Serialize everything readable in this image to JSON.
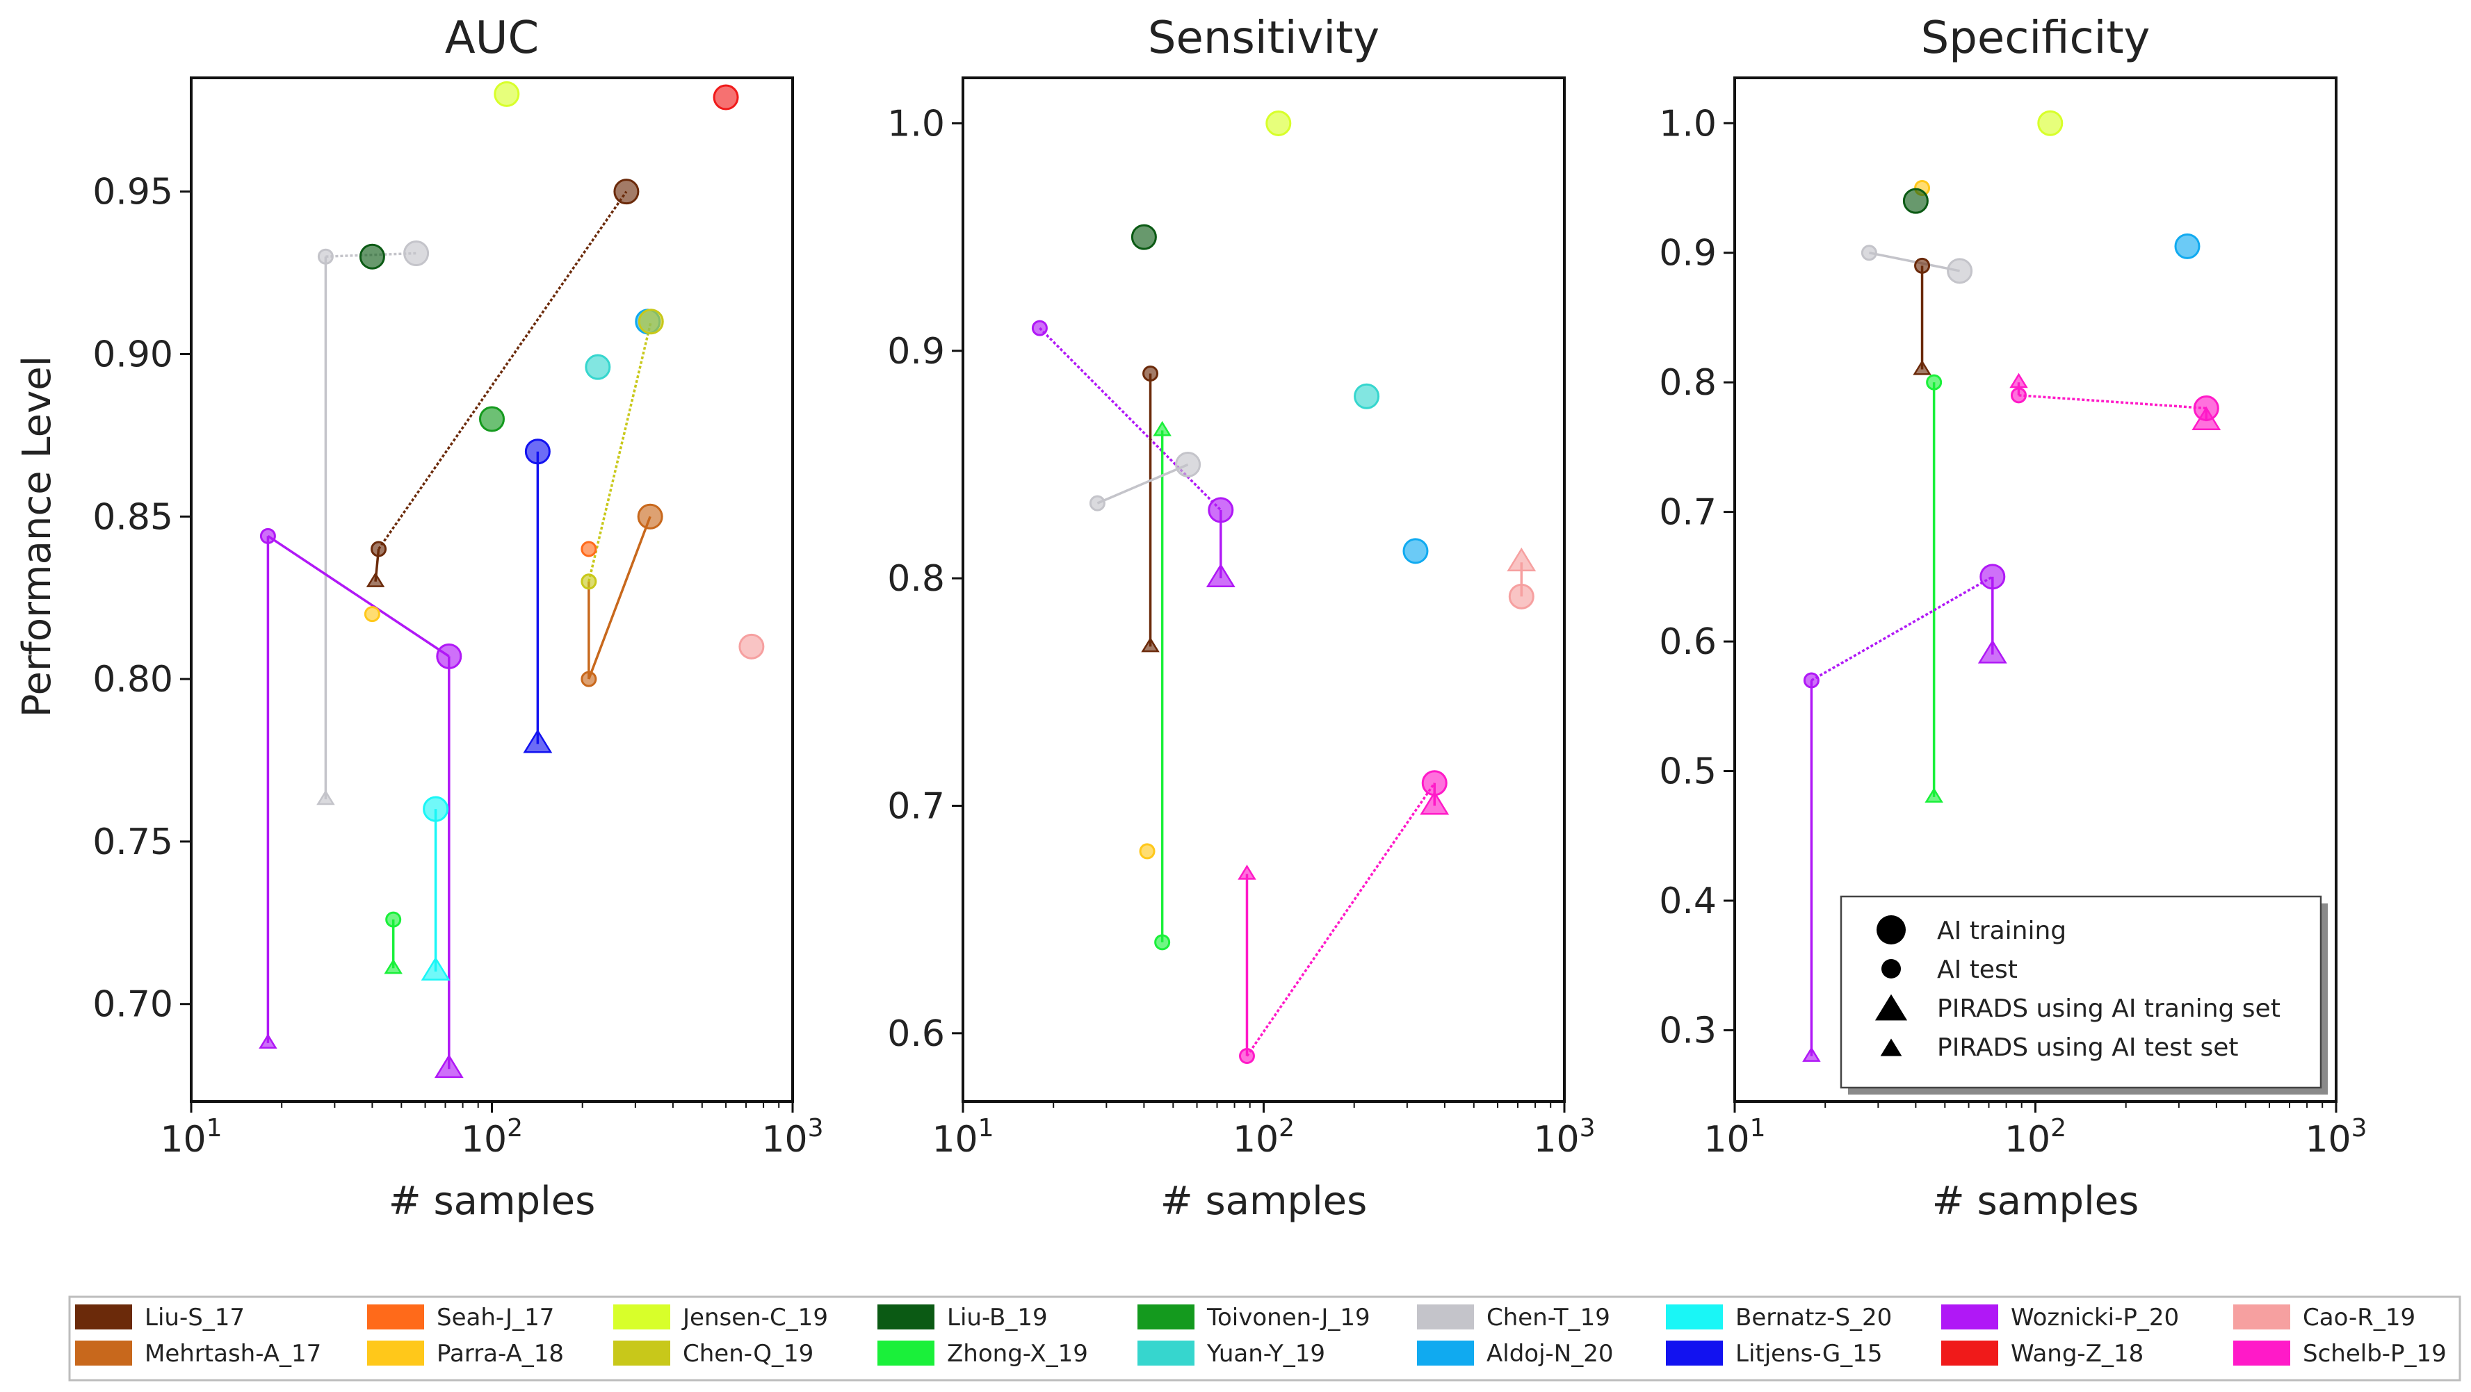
{
  "chart_data": {
    "type": "scatter",
    "figure": {
      "shared_ylabel": "Performance Level",
      "x_scale": "log",
      "legend_marker_title": null
    },
    "panels": [
      {
        "title": "AUC",
        "xlabel": "# samples",
        "xlim": [
          10,
          1000
        ],
        "ylim": [
          0.67,
          0.985
        ],
        "yticks": [
          0.7,
          0.75,
          0.8,
          0.85,
          0.9,
          0.95
        ],
        "ytick_labels": [
          "0.70",
          "0.75",
          "0.80",
          "0.85",
          "0.90",
          "0.95"
        ],
        "points": [
          {
            "study": "Jensen-C_19",
            "kind": "ai_train",
            "n": 112,
            "v": 0.98
          },
          {
            "study": "Wang-Z_18",
            "kind": "ai_train",
            "n": 600,
            "v": 0.979
          },
          {
            "study": "Liu-S_17",
            "kind": "ai_train",
            "n": 280,
            "v": 0.95
          },
          {
            "study": "Liu-S_17",
            "kind": "ai_test",
            "n": 42,
            "v": 0.84
          },
          {
            "study": "Liu-S_17",
            "kind": "pirads_test",
            "n": 41,
            "v": 0.83
          },
          {
            "study": "Liu-B_19",
            "kind": "ai_train",
            "n": 40,
            "v": 0.93
          },
          {
            "study": "Chen-T_19",
            "kind": "ai_train",
            "n": 56,
            "v": 0.931
          },
          {
            "study": "Chen-T_19",
            "kind": "ai_test",
            "n": 28,
            "v": 0.93
          },
          {
            "study": "Chen-T_19",
            "kind": "pirads_test",
            "n": 28,
            "v": 0.763
          },
          {
            "study": "Aldoj-N_20",
            "kind": "ai_train",
            "n": 330,
            "v": 0.91
          },
          {
            "study": "Chen-Q_19",
            "kind": "ai_train",
            "n": 338,
            "v": 0.91
          },
          {
            "study": "Chen-Q_19",
            "kind": "ai_test",
            "n": 210,
            "v": 0.83
          },
          {
            "study": "Yuan-Y_19",
            "kind": "ai_train",
            "n": 225,
            "v": 0.896
          },
          {
            "study": "Toivonen-J_19",
            "kind": "ai_train",
            "n": 100,
            "v": 0.88
          },
          {
            "study": "Litjens-G_15",
            "kind": "ai_train",
            "n": 142,
            "v": 0.87
          },
          {
            "study": "Litjens-G_15",
            "kind": "pirads_train",
            "n": 142,
            "v": 0.78
          },
          {
            "study": "Mehrtash-A_17",
            "kind": "ai_train",
            "n": 336,
            "v": 0.85
          },
          {
            "study": "Mehrtash-A_17",
            "kind": "ai_test",
            "n": 210,
            "v": 0.8
          },
          {
            "study": "Seah-J_17",
            "kind": "ai_test",
            "n": 210,
            "v": 0.84
          },
          {
            "study": "Parra-A_18",
            "kind": "ai_test",
            "n": 40,
            "v": 0.82
          },
          {
            "study": "Woznicki-P_20",
            "kind": "ai_test",
            "n": 18,
            "v": 0.844
          },
          {
            "study": "Woznicki-P_20",
            "kind": "pirads_test",
            "n": 18,
            "v": 0.688
          },
          {
            "study": "Woznicki-P_20",
            "kind": "ai_train",
            "n": 72,
            "v": 0.807
          },
          {
            "study": "Woznicki-P_20",
            "kind": "pirads_train",
            "n": 72,
            "v": 0.68
          },
          {
            "study": "Cao-R_19",
            "kind": "ai_train",
            "n": 730,
            "v": 0.81
          },
          {
            "study": "Bernatz-S_20",
            "kind": "ai_train",
            "n": 65,
            "v": 0.76
          },
          {
            "study": "Bernatz-S_20",
            "kind": "pirads_train",
            "n": 65,
            "v": 0.71
          },
          {
            "study": "Zhong-X_19",
            "kind": "ai_test",
            "n": 47,
            "v": 0.726
          },
          {
            "study": "Zhong-X_19",
            "kind": "pirads_test",
            "n": 47,
            "v": 0.711
          }
        ],
        "links": [
          {
            "study": "Liu-S_17",
            "from": [
              42,
              0.84
            ],
            "to": [
              280,
              0.95
            ],
            "style": "dotted"
          },
          {
            "study": "Liu-S_17",
            "from": [
              42,
              0.84
            ],
            "to": [
              41,
              0.83
            ],
            "style": "solid"
          },
          {
            "study": "Chen-T_19",
            "from": [
              28,
              0.93
            ],
            "to": [
              56,
              0.931
            ],
            "style": "dotted"
          },
          {
            "study": "Chen-T_19",
            "from": [
              28,
              0.93
            ],
            "to": [
              28,
              0.763
            ],
            "style": "solid"
          },
          {
            "study": "Chen-Q_19",
            "from": [
              210,
              0.83
            ],
            "to": [
              338,
              0.91
            ],
            "style": "dotted"
          },
          {
            "study": "Litjens-G_15",
            "from": [
              142,
              0.87
            ],
            "to": [
              142,
              0.78
            ],
            "style": "solid"
          },
          {
            "study": "Mehrtash-A_17",
            "from": [
              210,
              0.8
            ],
            "to": [
              336,
              0.85
            ],
            "style": "solid"
          },
          {
            "study": "Mehrtash-A_17",
            "from": [
              210,
              0.8
            ],
            "to": [
              210,
              0.83
            ],
            "style": "solid"
          },
          {
            "study": "Woznicki-P_20",
            "from": [
              18,
              0.844
            ],
            "to": [
              72,
              0.807
            ],
            "style": "solid"
          },
          {
            "study": "Woznicki-P_20",
            "from": [
              18,
              0.844
            ],
            "to": [
              18,
              0.688
            ],
            "style": "solid"
          },
          {
            "study": "Woznicki-P_20",
            "from": [
              72,
              0.807
            ],
            "to": [
              72,
              0.68
            ],
            "style": "solid"
          },
          {
            "study": "Bernatz-S_20",
            "from": [
              65,
              0.76
            ],
            "to": [
              65,
              0.71
            ],
            "style": "solid"
          },
          {
            "study": "Zhong-X_19",
            "from": [
              47,
              0.726
            ],
            "to": [
              47,
              0.711
            ],
            "style": "solid"
          }
        ]
      },
      {
        "title": "Sensitivity",
        "xlabel": "# samples",
        "xlim": [
          10,
          1000
        ],
        "ylim": [
          0.57,
          1.02
        ],
        "yticks": [
          0.6,
          0.7,
          0.8,
          0.9,
          1.0
        ],
        "ytick_labels": [
          "0.6",
          "0.7",
          "0.8",
          "0.9",
          "1.0"
        ],
        "points": [
          {
            "study": "Jensen-C_19",
            "kind": "ai_train",
            "n": 112,
            "v": 1.0
          },
          {
            "study": "Liu-B_19",
            "kind": "ai_train",
            "n": 40,
            "v": 0.95
          },
          {
            "study": "Woznicki-P_20",
            "kind": "ai_test",
            "n": 18,
            "v": 0.91
          },
          {
            "study": "Woznicki-P_20",
            "kind": "ai_train",
            "n": 72,
            "v": 0.83
          },
          {
            "study": "Woznicki-P_20",
            "kind": "pirads_train",
            "n": 72,
            "v": 0.8
          },
          {
            "study": "Liu-S_17",
            "kind": "ai_test",
            "n": 42,
            "v": 0.89
          },
          {
            "study": "Liu-S_17",
            "kind": "pirads_test",
            "n": 42,
            "v": 0.77
          },
          {
            "study": "Yuan-Y_19",
            "kind": "ai_train",
            "n": 220,
            "v": 0.88
          },
          {
            "study": "Zhong-X_19",
            "kind": "pirads_test",
            "n": 46,
            "v": 0.865
          },
          {
            "study": "Zhong-X_19",
            "kind": "ai_test",
            "n": 46,
            "v": 0.64
          },
          {
            "study": "Chen-T_19",
            "kind": "ai_train",
            "n": 56,
            "v": 0.85
          },
          {
            "study": "Chen-T_19",
            "kind": "ai_test",
            "n": 28,
            "v": 0.833
          },
          {
            "study": "Aldoj-N_20",
            "kind": "ai_train",
            "n": 320,
            "v": 0.812
          },
          {
            "study": "Cao-R_19",
            "kind": "pirads_train",
            "n": 720,
            "v": 0.807
          },
          {
            "study": "Cao-R_19",
            "kind": "ai_train",
            "n": 720,
            "v": 0.792
          },
          {
            "study": "Schelb-P_19",
            "kind": "ai_train",
            "n": 370,
            "v": 0.71
          },
          {
            "study": "Schelb-P_19",
            "kind": "pirads_train",
            "n": 370,
            "v": 0.7
          },
          {
            "study": "Schelb-P_19",
            "kind": "ai_test",
            "n": 88,
            "v": 0.59
          },
          {
            "study": "Schelb-P_19",
            "kind": "pirads_test",
            "n": 88,
            "v": 0.67
          },
          {
            "study": "Parra-A_18",
            "kind": "ai_test",
            "n": 41,
            "v": 0.68
          }
        ],
        "links": [
          {
            "study": "Woznicki-P_20",
            "from": [
              18,
              0.91
            ],
            "to": [
              72,
              0.83
            ],
            "style": "dotted"
          },
          {
            "study": "Woznicki-P_20",
            "from": [
              72,
              0.83
            ],
            "to": [
              72,
              0.8
            ],
            "style": "solid"
          },
          {
            "study": "Liu-S_17",
            "from": [
              42,
              0.89
            ],
            "to": [
              42,
              0.77
            ],
            "style": "solid"
          },
          {
            "study": "Zhong-X_19",
            "from": [
              46,
              0.865
            ],
            "to": [
              46,
              0.64
            ],
            "style": "solid"
          },
          {
            "study": "Chen-T_19",
            "from": [
              28,
              0.833
            ],
            "to": [
              56,
              0.85
            ],
            "style": "solid"
          },
          {
            "study": "Cao-R_19",
            "from": [
              720,
              0.807
            ],
            "to": [
              720,
              0.792
            ],
            "style": "solid"
          },
          {
            "study": "Schelb-P_19",
            "from": [
              88,
              0.59
            ],
            "to": [
              370,
              0.71
            ],
            "style": "dotted"
          },
          {
            "study": "Schelb-P_19",
            "from": [
              88,
              0.59
            ],
            "to": [
              88,
              0.67
            ],
            "style": "solid"
          },
          {
            "study": "Schelb-P_19",
            "from": [
              370,
              0.71
            ],
            "to": [
              370,
              0.7
            ],
            "style": "solid"
          }
        ]
      },
      {
        "title": "Specificity",
        "xlabel": "# samples",
        "xlim": [
          10,
          1000
        ],
        "ylim": [
          0.245,
          1.035
        ],
        "yticks": [
          0.3,
          0.4,
          0.5,
          0.6,
          0.7,
          0.8,
          0.9,
          1.0
        ],
        "ytick_labels": [
          "0.3",
          "0.4",
          "0.5",
          "0.6",
          "0.7",
          "0.8",
          "0.9",
          "1.0"
        ],
        "points": [
          {
            "study": "Jensen-C_19",
            "kind": "ai_train",
            "n": 112,
            "v": 1.0
          },
          {
            "study": "Parra-A_18",
            "kind": "ai_test",
            "n": 42,
            "v": 0.95
          },
          {
            "study": "Liu-B_19",
            "kind": "ai_train",
            "n": 40,
            "v": 0.94
          },
          {
            "study": "Aldoj-N_20",
            "kind": "ai_train",
            "n": 320,
            "v": 0.905
          },
          {
            "study": "Chen-T_19",
            "kind": "ai_test",
            "n": 28,
            "v": 0.9
          },
          {
            "study": "Chen-T_19",
            "kind": "ai_train",
            "n": 56,
            "v": 0.886
          },
          {
            "study": "Liu-S_17",
            "kind": "ai_test",
            "n": 42,
            "v": 0.89
          },
          {
            "study": "Liu-S_17",
            "kind": "pirads_test",
            "n": 42,
            "v": 0.81
          },
          {
            "study": "Zhong-X_19",
            "kind": "ai_test",
            "n": 46,
            "v": 0.8
          },
          {
            "study": "Zhong-X_19",
            "kind": "pirads_test",
            "n": 46,
            "v": 0.48
          },
          {
            "study": "Schelb-P_19",
            "kind": "pirads_test",
            "n": 88,
            "v": 0.8
          },
          {
            "study": "Schelb-P_19",
            "kind": "ai_test",
            "n": 88,
            "v": 0.79
          },
          {
            "study": "Schelb-P_19",
            "kind": "ai_train",
            "n": 370,
            "v": 0.78
          },
          {
            "study": "Schelb-P_19",
            "kind": "pirads_train",
            "n": 370,
            "v": 0.77
          },
          {
            "study": "Woznicki-P_20",
            "kind": "ai_train",
            "n": 72,
            "v": 0.65
          },
          {
            "study": "Woznicki-P_20",
            "kind": "pirads_train",
            "n": 72,
            "v": 0.59
          },
          {
            "study": "Woznicki-P_20",
            "kind": "ai_test",
            "n": 18,
            "v": 0.57
          },
          {
            "study": "Woznicki-P_20",
            "kind": "pirads_test",
            "n": 18,
            "v": 0.28
          }
        ],
        "links": [
          {
            "study": "Chen-T_19",
            "from": [
              28,
              0.9
            ],
            "to": [
              56,
              0.886
            ],
            "style": "solid"
          },
          {
            "study": "Liu-S_17",
            "from": [
              42,
              0.89
            ],
            "to": [
              42,
              0.81
            ],
            "style": "solid"
          },
          {
            "study": "Zhong-X_19",
            "from": [
              46,
              0.8
            ],
            "to": [
              46,
              0.48
            ],
            "style": "solid"
          },
          {
            "study": "Schelb-P_19",
            "from": [
              88,
              0.79
            ],
            "to": [
              370,
              0.78
            ],
            "style": "dotted"
          },
          {
            "study": "Schelb-P_19",
            "from": [
              88,
              0.79
            ],
            "to": [
              88,
              0.8
            ],
            "style": "solid"
          },
          {
            "study": "Schelb-P_19",
            "from": [
              370,
              0.78
            ],
            "to": [
              370,
              0.77
            ],
            "style": "solid"
          },
          {
            "study": "Woznicki-P_20",
            "from": [
              18,
              0.57
            ],
            "to": [
              72,
              0.65
            ],
            "style": "dotted"
          },
          {
            "study": "Woznicki-P_20",
            "from": [
              18,
              0.57
            ],
            "to": [
              18,
              0.28
            ],
            "style": "solid"
          },
          {
            "study": "Woznicki-P_20",
            "from": [
              72,
              0.65
            ],
            "to": [
              72,
              0.59
            ],
            "style": "solid"
          }
        ]
      }
    ],
    "marker_legend": [
      {
        "kind": "ai_train",
        "label": "AI training"
      },
      {
        "kind": "ai_test",
        "label": "AI test"
      },
      {
        "kind": "pirads_train",
        "label": "PIRADS using AI traning set"
      },
      {
        "kind": "pirads_test",
        "label": "PIRADS using AI test set"
      }
    ],
    "studies": [
      {
        "name": "Liu-S_17",
        "color": "#6B2A0A"
      },
      {
        "name": "Mehrtash-A_17",
        "color": "#C8681C"
      },
      {
        "name": "Seah-J_17",
        "color": "#FF6A1A"
      },
      {
        "name": "Parra-A_18",
        "color": "#FFC81A"
      },
      {
        "name": "Jensen-C_19",
        "color": "#D8FF2A"
      },
      {
        "name": "Chen-Q_19",
        "color": "#C8C81A"
      },
      {
        "name": "Liu-B_19",
        "color": "#0B5A14"
      },
      {
        "name": "Zhong-X_19",
        "color": "#1AF03A"
      },
      {
        "name": "Toivonen-J_19",
        "color": "#149A1E"
      },
      {
        "name": "Yuan-Y_19",
        "color": "#36D6CE"
      },
      {
        "name": "Chen-T_19",
        "color": "#C4C4CA"
      },
      {
        "name": "Aldoj-N_20",
        "color": "#10AAF0"
      },
      {
        "name": "Bernatz-S_20",
        "color": "#1AF6F6"
      },
      {
        "name": "Litjens-G_15",
        "color": "#1212F0"
      },
      {
        "name": "Woznicki-P_20",
        "color": "#B018F6"
      },
      {
        "name": "Wang-Z_18",
        "color": "#F01A1A"
      },
      {
        "name": "Cao-R_19",
        "color": "#F6A0A0"
      },
      {
        "name": "Schelb-P_19",
        "color": "#FF1AC8"
      }
    ]
  }
}
